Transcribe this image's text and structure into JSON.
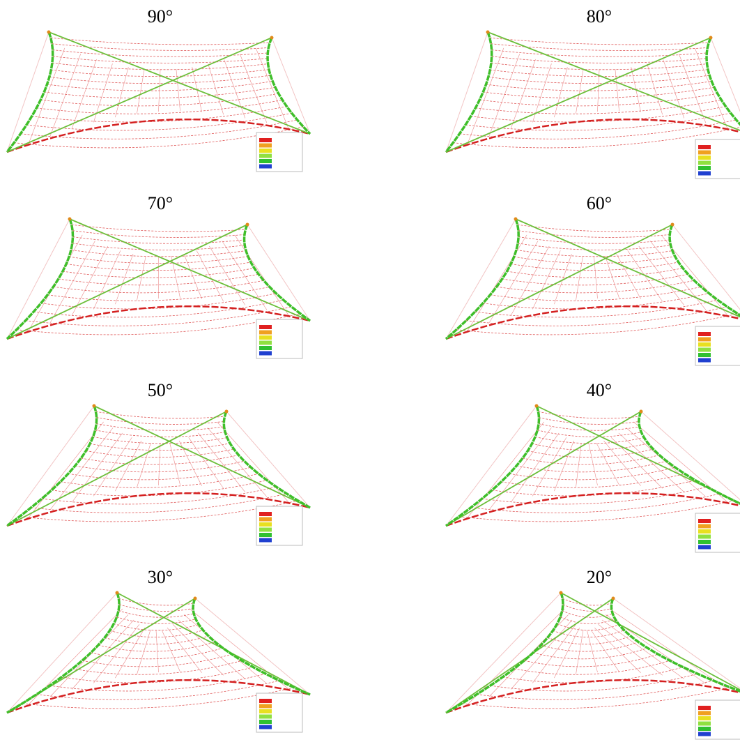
{
  "panels": [
    {
      "label": "90°"
    },
    {
      "label": "80°"
    },
    {
      "label": "70°"
    },
    {
      "label": "60°"
    },
    {
      "label": "50°"
    },
    {
      "label": "40°"
    },
    {
      "label": "30°"
    },
    {
      "label": "20°"
    }
  ]
}
